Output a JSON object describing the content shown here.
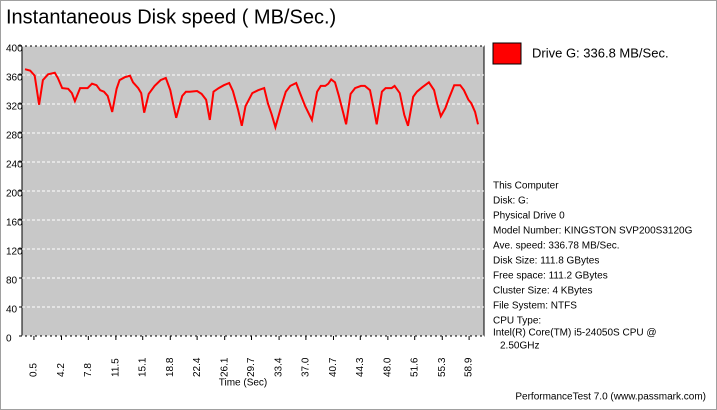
{
  "chart_data": {
    "type": "line",
    "title": "Instantaneous Disk speed ( MB/Sec.)",
    "x_label": "Time (Sec)",
    "x": [
      -0.7,
      0.0,
      0.6,
      1.2,
      1.7,
      2.4,
      3.3,
      3.7,
      4.3,
      5.1,
      5.6,
      6.0,
      6.7,
      7.7,
      8.3,
      8.9,
      9.4,
      9.9,
      10.4,
      11.0,
      11.6,
      12.0,
      12.7,
      13.4,
      13.8,
      14.5,
      14.9,
      15.3,
      15.9,
      16.7,
      17.5,
      18.2,
      18.8,
      19.2,
      19.6,
      20.4,
      20.9,
      21.4,
      22.4,
      23.0,
      23.6,
      24.1,
      24.6,
      25.3,
      26.0,
      26.7,
      27.2,
      27.9,
      28.4,
      28.9,
      29.8,
      30.6,
      31.4,
      31.9,
      32.4,
      32.9,
      33.7,
      34.3,
      34.9,
      35.7,
      36.1,
      36.9,
      37.8,
      38.5,
      39.0,
      39.6,
      40.0,
      40.4,
      40.9,
      41.4,
      42.0,
      42.4,
      43.0,
      43.6,
      44.4,
      44.9,
      45.6,
      46.1,
      46.5,
      47.2,
      47.7,
      48.5,
      48.9,
      49.6,
      50.2,
      50.7,
      51.4,
      51.9,
      52.6,
      53.5,
      54.2,
      54.6,
      55.1,
      55.7,
      56.2,
      56.9,
      57.7,
      58.2,
      58.8,
      59.2,
      59.7,
      60.1
    ],
    "series": [
      {
        "name": "Drive G: 336.8 MB/Sec.",
        "color": "#ff0000",
        "values": [
          368,
          366,
          359,
          319,
          353,
          361,
          363,
          356,
          342,
          341,
          335,
          324,
          342,
          342,
          348,
          346,
          339,
          337,
          331,
          309,
          341,
          353,
          357,
          359,
          350,
          342,
          335,
          308,
          334,
          345,
          353,
          356,
          339,
          319,
          301,
          331,
          337,
          337,
          338,
          334,
          326,
          298,
          337,
          342,
          346,
          349,
          338,
          312,
          290,
          317,
          335,
          339,
          342,
          321,
          306,
          288,
          317,
          337,
          345,
          349,
          338,
          317,
          298,
          337,
          345,
          345,
          348,
          354,
          350,
          332,
          308,
          292,
          334,
          342,
          345,
          345,
          339,
          314,
          292,
          337,
          342,
          342,
          345,
          335,
          305,
          290,
          330,
          337,
          343,
          350,
          339,
          321,
          303,
          314,
          328,
          346,
          346,
          339,
          326,
          321,
          309,
          292
        ]
      }
    ],
    "xlim": [
      -1.1,
      60.9
    ],
    "xticks": [
      0.5,
      4.2,
      7.8,
      11.5,
      15.1,
      18.8,
      22.4,
      26.1,
      29.7,
      33.4,
      {
        "value": 37,
        "label": "37.0"
      },
      40.7,
      44.3,
      {
        "value": 48,
        "label": "48.0"
      },
      51.6,
      55.3,
      58.9
    ],
    "ylim": [
      0,
      400
    ],
    "yticks": [
      0,
      40,
      80,
      120,
      160,
      200,
      240,
      280,
      320,
      360,
      400
    ],
    "grid": true,
    "plot_background": "#c8c8c8",
    "info_lines": [
      "This Computer",
      "Disk: G:",
      "Physical Drive 0",
      "Model Number: KINGSTON SVP200S3120G",
      "Ave. speed: 336.78 MB/Sec.",
      "Disk Size: 111.8 GBytes",
      "Free space: 111.2 GBytes",
      "Cluster Size: 4 KBytes",
      "File System: NTFS",
      "CPU Type:",
      "Intel(R) Core(TM) i5-24050S CPU @",
      "2.50GHz"
    ],
    "footer": "PerformanceTest 7.0 (www.passmark.com)"
  }
}
